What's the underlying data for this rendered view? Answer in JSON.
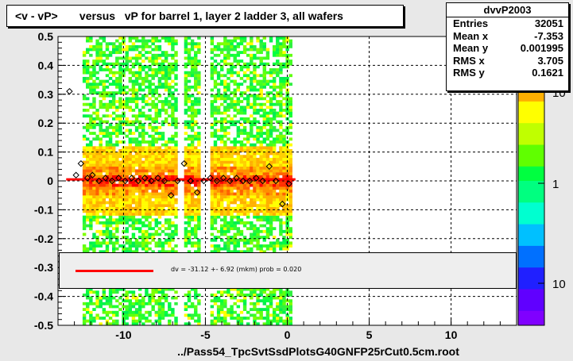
{
  "title": "<v - vP>       versus   vP for barrel 1, layer 2 ladder 3, all wafers",
  "x_axis_label": "../Pass54_TpcSvtSsdPlotsG40GNFP25rCut0.5cm.root",
  "stats": {
    "name": "dvvP2003",
    "rows": [
      {
        "label": "Entries",
        "value": "32051"
      },
      {
        "label": "Mean x",
        "value": "-7.353"
      },
      {
        "label": "Mean y",
        "value": "0.001995"
      },
      {
        "label": "RMS x",
        "value": "3.705"
      },
      {
        "label": "RMS y",
        "value": "0.1621"
      }
    ]
  },
  "legend": {
    "text": "dv =  -31.12 +-  6.92 (mkm) prob = 0.020",
    "color": "#ff0000"
  },
  "colors": {
    "frame_bg": "#e8e8e8",
    "plot_bg": "#ffffff",
    "fit_line": "#ff0000",
    "palette_low": "#8000ff",
    "palette_high": "#ff0000"
  },
  "chart_data": {
    "type": "heatmap",
    "xlim": [
      -14,
      14
    ],
    "ylim": [
      -0.5,
      0.5
    ],
    "x_ticks": [
      -10,
      -5,
      0,
      5,
      10
    ],
    "x_tick_labels": [
      "-10",
      "-5",
      "0",
      "5",
      "10"
    ],
    "y_ticks": [
      -0.5,
      -0.4,
      -0.3,
      -0.2,
      -0.1,
      0,
      0.1,
      0.2,
      0.3,
      0.4,
      0.5
    ],
    "y_tick_labels": [
      "-0.5",
      "-0.4",
      "-0.3",
      "-0.2",
      "-0.1",
      "0",
      "0.1",
      "0.2",
      "0.3",
      "0.4",
      "0.5"
    ],
    "z_log_scale": true,
    "z_tick_labels": [
      "10",
      "1",
      "10"
    ],
    "grid": true,
    "data_x_range": [
      -12.5,
      0.3
    ],
    "gap_x_ranges": [
      [
        -6.6,
        -6.3
      ],
      [
        -5.2,
        -4.8
      ]
    ],
    "profile_points": {
      "x": [
        -13.3,
        -12.9,
        -12.6,
        -12.2,
        -11.9,
        -11.5,
        -11.1,
        -10.7,
        -10.3,
        -9.9,
        -9.5,
        -9.1,
        -8.7,
        -8.3,
        -7.9,
        -7.5,
        -7.1,
        -6.7,
        -6.3,
        -5.9,
        -5.5,
        -5.1,
        -4.7,
        -4.3,
        -3.9,
        -3.5,
        -3.1,
        -2.7,
        -2.3,
        -1.9,
        -1.5,
        -1.1,
        -0.7,
        -0.3,
        0.1
      ],
      "y": [
        0.31,
        0.02,
        0.06,
        0.01,
        0.02,
        0.0,
        0.01,
        0.0,
        0.01,
        0.0,
        0.01,
        0.0,
        0.01,
        0.0,
        0.01,
        0.0,
        -0.05,
        0.0,
        0.06,
        0.0,
        -0.04,
        0.0,
        0.01,
        0.0,
        0.01,
        0.0,
        0.01,
        0.0,
        0.0,
        0.01,
        0.0,
        0.05,
        0.0,
        -0.08,
        -0.01
      ]
    },
    "fit_line": {
      "x": [
        -13.5,
        0.5
      ],
      "y": [
        -0.03112,
        -0.03112
      ],
      "display_y": 0.005
    }
  }
}
